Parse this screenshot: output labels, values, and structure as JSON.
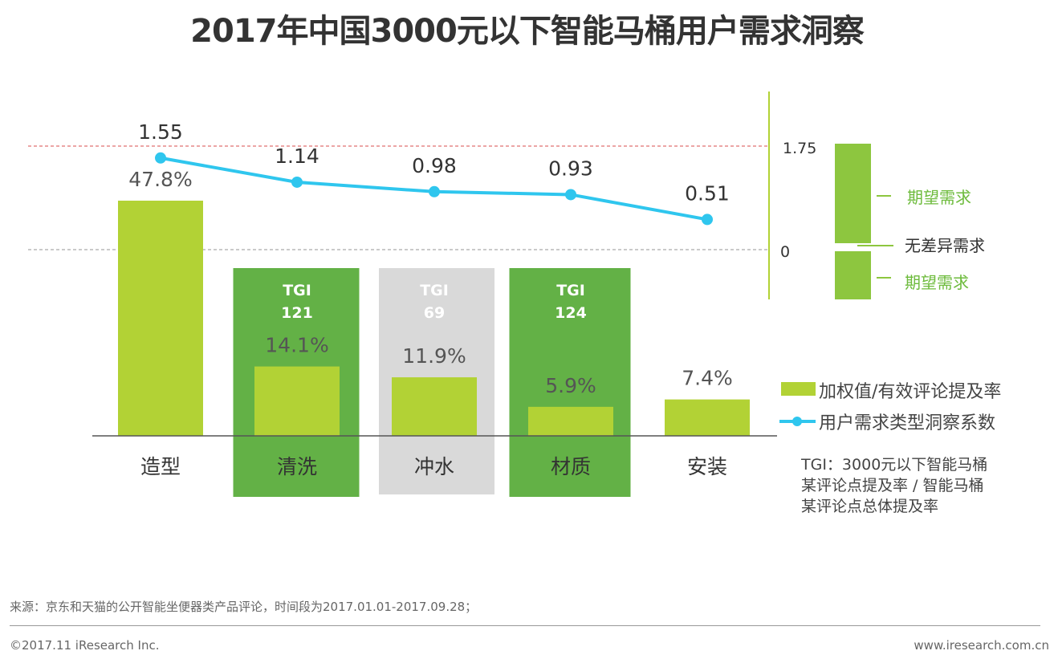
{
  "title": "2017年中国3000元以下智能马桶用户需求洞察",
  "chart_data": {
    "type": "bar+line",
    "categories": [
      "造型",
      "清洗",
      "冲水",
      "材质",
      "安装"
    ],
    "series": [
      {
        "name": "加权值/有效评论提及率",
        "type": "bar",
        "values": [
          47.8,
          14.1,
          11.9,
          5.9,
          7.4
        ],
        "labels": [
          "47.8%",
          "14.1%",
          "11.9%",
          "5.9%",
          "7.4%"
        ],
        "color": "#b2d235"
      },
      {
        "name": "用户需求类型洞察系数",
        "type": "line",
        "values": [
          1.55,
          1.14,
          0.98,
          0.93,
          0.51
        ],
        "labels": [
          "1.55",
          "1.14",
          "0.98",
          "0.93",
          "0.51"
        ],
        "color": "#2fc6ee"
      }
    ],
    "tgi": [
      {
        "category": "清洗",
        "label": "TGI",
        "value": "121",
        "color": "#63b146"
      },
      {
        "category": "冲水",
        "label": "TGI",
        "value": "69",
        "color": "#d9d9d9"
      },
      {
        "category": "材质",
        "label": "TGI",
        "value": "124",
        "color": "#63b146"
      }
    ],
    "reference_lines": [
      {
        "value": 1.75,
        "label": "1.75",
        "color": "#e07070"
      },
      {
        "value": 0,
        "label": "0",
        "color": "#aaaaaa"
      }
    ],
    "scale_legend": {
      "upper": "期望需求",
      "middle": "无差异需求",
      "lower": "期望需求",
      "color": "#8dc63f"
    },
    "legend_placement": "right"
  },
  "tgi_note": [
    "TGI：3000元以下智能马桶",
    "某评论点提及率 / 智能马桶",
    "某评论点总体提及率"
  ],
  "source": "来源：京东和天猫的公开智能坐便器类产品评论，时间段为2017.01.01-2017.09.28；",
  "copyright": "©2017.11 iResearch Inc.",
  "website": "www.iresearch.com.cn"
}
